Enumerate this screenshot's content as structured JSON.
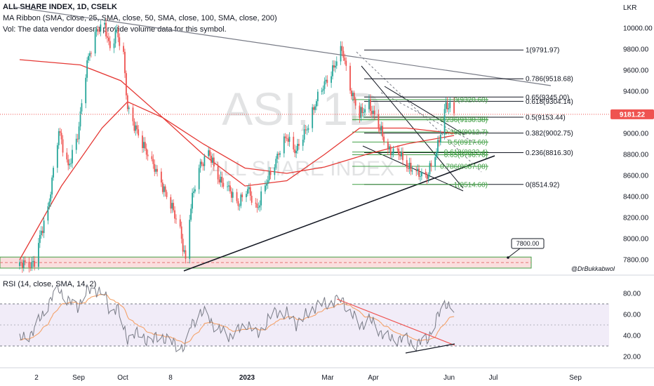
{
  "header": {
    "symbol_line": "ALL SHARE INDEX, 1D, CSELK",
    "ma_line": "MA Ribbon (SMA, close, 25, SMA, close, 50, SMA, close, 100, SMA, close, 200)",
    "vol_line": "Vol: The data vendor doesn't provide volume data for this symbol."
  },
  "watermark": {
    "ticker": "ASI, 1D",
    "name": "ALL SHARE INDEX"
  },
  "currency_label": "LKR",
  "price_badge": "9181.22",
  "author_tag": "@DrBukkabwol",
  "support_label": "7800.00",
  "colors": {
    "candle_up": "#26a69a",
    "candle_down": "#ef5350",
    "ma_red": "#e53935",
    "ma_orange": "#f4a26a",
    "fib_green": "#43a047",
    "trend": "#131722",
    "support_fill": "#f9d3d3",
    "rsi_line": "#7e57c2",
    "rsi_band": "#ede7f6"
  },
  "chart_data": [
    {
      "type": "candlestick",
      "title": "ALL SHARE INDEX, 1D, CSELK",
      "price_axis": {
        "unit": "LKR",
        "ticks": [
          "10000.00",
          "9800.00",
          "9600.00",
          "9400.00",
          "9200.00",
          "9000.00",
          "8800.00",
          "8600.00",
          "8400.00",
          "8200.00",
          "8000.00",
          "7800.00"
        ],
        "range": [
          7690,
          10230
        ]
      },
      "time_axis": {
        "labels": [
          "2",
          "Sep",
          "Oct",
          "8",
          "2023",
          "Mar",
          "Apr",
          "Jun",
          "Jul",
          "Sep"
        ]
      },
      "close_path": [
        [
          "2022-08-01",
          7740
        ],
        [
          "2022-08-12",
          7780
        ],
        [
          "2022-08-22",
          8300
        ],
        [
          "2022-08-30",
          9000
        ],
        [
          "2022-09-06",
          8700
        ],
        [
          "2022-09-13",
          8950
        ],
        [
          "2022-09-20",
          9700
        ],
        [
          "2022-09-27",
          9950
        ],
        [
          "2022-10-03",
          10050
        ],
        [
          "2022-10-07",
          9800
        ],
        [
          "2022-10-12",
          9950
        ],
        [
          "2022-10-17",
          9750
        ],
        [
          "2022-10-20",
          9250
        ],
        [
          "2022-10-25",
          9050
        ],
        [
          "2022-11-01",
          8900
        ],
        [
          "2022-11-07",
          8700
        ],
        [
          "2022-11-14",
          8550
        ],
        [
          "2022-11-21",
          8300
        ],
        [
          "2022-11-28",
          8100
        ],
        [
          "2022-12-02",
          7790
        ],
        [
          "2022-12-06",
          8300
        ],
        [
          "2022-12-12",
          8700
        ],
        [
          "2022-12-19",
          8800
        ],
        [
          "2022-12-26",
          8600
        ],
        [
          "2023-01-03",
          8450
        ],
        [
          "2023-01-10",
          8350
        ],
        [
          "2023-01-17",
          8450
        ],
        [
          "2023-01-24",
          8300
        ],
        [
          "2023-02-01",
          8550
        ],
        [
          "2023-02-08",
          8800
        ],
        [
          "2023-02-15",
          8950
        ],
        [
          "2023-02-22",
          8850
        ],
        [
          "2023-03-01",
          9000
        ],
        [
          "2023-03-08",
          9300
        ],
        [
          "2023-03-15",
          9450
        ],
        [
          "2023-03-22",
          9650
        ],
        [
          "2023-03-28",
          9780
        ],
        [
          "2023-04-03",
          9450
        ],
        [
          "2023-04-10",
          9150
        ],
        [
          "2023-04-17",
          9300
        ],
        [
          "2023-04-24",
          9050
        ],
        [
          "2023-05-02",
          8850
        ],
        [
          "2023-05-09",
          8800
        ],
        [
          "2023-05-16",
          8700
        ],
        [
          "2023-05-23",
          8600
        ],
        [
          "2023-05-30",
          8620
        ],
        [
          "2023-06-06",
          8800
        ],
        [
          "2023-06-13",
          9300
        ],
        [
          "2023-06-19",
          9181
        ]
      ],
      "moving_averages": [
        {
          "name": "SMA 200",
          "color": "#e53935",
          "path": [
            [
              "2022-08-01",
              9700
            ],
            [
              "2022-09-15",
              9650
            ],
            [
              "2022-10-15",
              9500
            ],
            [
              "2022-11-15",
              9150
            ],
            [
              "2022-12-15",
              8900
            ],
            [
              "2023-01-15",
              8670
            ],
            [
              "2023-02-15",
              8620
            ],
            [
              "2023-03-15",
              8680
            ],
            [
              "2023-04-15",
              8800
            ],
            [
              "2023-05-15",
              8900
            ],
            [
              "2023-06-19",
              8980
            ]
          ]
        },
        {
          "name": "SMA 100",
          "color": "#e53935",
          "path": [
            [
              "2022-08-01",
              7800
            ],
            [
              "2022-09-01",
              8500
            ],
            [
              "2022-10-01",
              9050
            ],
            [
              "2022-10-20",
              9300
            ],
            [
              "2022-11-15",
              9150
            ],
            [
              "2022-12-15",
              8800
            ],
            [
              "2023-01-15",
              8500
            ],
            [
              "2023-02-15",
              8550
            ],
            [
              "2023-03-15",
              8800
            ],
            [
              "2023-04-10",
              9050
            ],
            [
              "2023-05-15",
              9050
            ],
            [
              "2023-06-19",
              9000
            ]
          ]
        }
      ],
      "support_zone": {
        "label": "7800.00",
        "from": 7720,
        "to": 7825
      },
      "fib_retracements": [
        {
          "group": "black",
          "levels": [
            {
              "label": "1(9791.97)",
              "value": 9791.97
            },
            {
              "label": "0.786(9518.68)",
              "value": 9518.68
            },
            {
              "label": "0.65(9345.00)",
              "value": 9345.0
            },
            {
              "label": "0.618(9304.14)",
              "value": 9304.14
            },
            {
              "label": "0.5(9153.44)",
              "value": 9153.44
            },
            {
              "label": "0.382(9002.75)",
              "value": 9002.75
            },
            {
              "label": "0.236(8816.30)",
              "value": 8816.3
            },
            {
              "label": "0(8514.92)",
              "value": 8514.92
            }
          ]
        },
        {
          "group": "green",
          "levels": [
            {
              "label": "0(9320.60)",
              "value": 9320.6
            },
            {
              "label": "0.236(9130.38)",
              "value": 9130.38
            },
            {
              "label": "0.382(9012.7)",
              "value": 9012.7
            },
            {
              "label": "0.5(8917.60)",
              "value": 8917.6
            },
            {
              "label": "0.618(8822.4)",
              "value": 8822.4
            },
            {
              "label": "0.65(8796.76)",
              "value": 8796.76
            },
            {
              "label": "0.786(8687.08)",
              "value": 8687.08
            },
            {
              "label": "1(8514.60)",
              "value": 8514.6
            }
          ]
        }
      ]
    },
    {
      "type": "line",
      "title": "RSI (14, close, SMA, 14, 2)",
      "y_ticks": [
        "80.00",
        "60.00",
        "40.00",
        "20.00"
      ],
      "range": [
        15,
        90
      ],
      "band": [
        30,
        70
      ],
      "rsi_path": [
        [
          "2022-08-01",
          35
        ],
        [
          "2022-08-12",
          45
        ],
        [
          "2022-08-22",
          70
        ],
        [
          "2022-08-30",
          85
        ],
        [
          "2022-09-06",
          72
        ],
        [
          "2022-09-13",
          68
        ],
        [
          "2022-09-20",
          82
        ],
        [
          "2022-09-27",
          84
        ],
        [
          "2022-10-03",
          78
        ],
        [
          "2022-10-07",
          62
        ],
        [
          "2022-10-12",
          68
        ],
        [
          "2022-10-17",
          45
        ],
        [
          "2022-10-20",
          38
        ],
        [
          "2022-10-25",
          42
        ],
        [
          "2022-11-01",
          38
        ],
        [
          "2022-11-07",
          35
        ],
        [
          "2022-11-14",
          40
        ],
        [
          "2022-11-21",
          33
        ],
        [
          "2022-11-28",
          30
        ],
        [
          "2022-12-02",
          28
        ],
        [
          "2022-12-06",
          50
        ],
        [
          "2022-12-12",
          62
        ],
        [
          "2022-12-19",
          58
        ],
        [
          "2022-12-26",
          45
        ],
        [
          "2023-01-03",
          40
        ],
        [
          "2023-01-10",
          44
        ],
        [
          "2023-01-17",
          52
        ],
        [
          "2023-01-24",
          40
        ],
        [
          "2023-02-01",
          55
        ],
        [
          "2023-02-08",
          63
        ],
        [
          "2023-02-15",
          60
        ],
        [
          "2023-02-22",
          52
        ],
        [
          "2023-03-01",
          58
        ],
        [
          "2023-03-08",
          68
        ],
        [
          "2023-03-15",
          70
        ],
        [
          "2023-03-22",
          72
        ],
        [
          "2023-03-28",
          74
        ],
        [
          "2023-04-03",
          62
        ],
        [
          "2023-04-10",
          50
        ],
        [
          "2023-04-17",
          55
        ],
        [
          "2023-04-24",
          46
        ],
        [
          "2023-05-02",
          36
        ],
        [
          "2023-05-09",
          38
        ],
        [
          "2023-05-16",
          34
        ],
        [
          "2023-05-23",
          32
        ],
        [
          "2023-05-30",
          36
        ],
        [
          "2023-06-06",
          55
        ],
        [
          "2023-06-13",
          72
        ],
        [
          "2023-06-19",
          64
        ]
      ]
    }
  ]
}
